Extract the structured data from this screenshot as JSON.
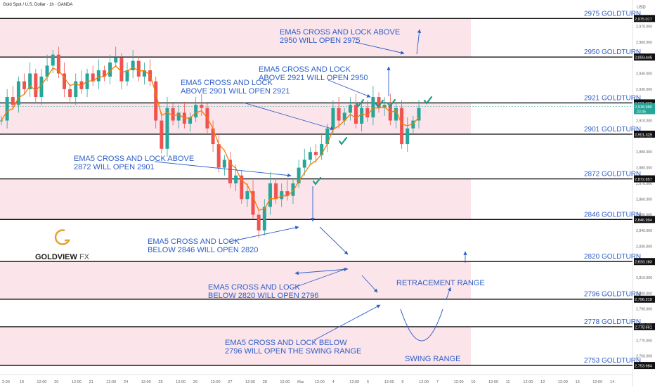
{
  "header": {
    "symbol_title": "Gold Spot / U.S. Dollar · 1h · OANDA",
    "currency": "USD"
  },
  "logo": {
    "brand": "GOLDVIEW",
    "suffix": "FX"
  },
  "colors": {
    "zone": "#fbe4ea",
    "level_line": "#111111",
    "annotation": "#2e5fc7",
    "candle_up": "#26a69a",
    "candle_down": "#ef5350",
    "ema": "#f57c00",
    "check": "#1aa084"
  },
  "chart_data": {
    "type": "candlestick",
    "ylim": [
      2750,
      2985
    ],
    "y_ticks": [
      2760,
      2770,
      2780,
      2790,
      2800,
      2810,
      2820,
      2830,
      2840,
      2850,
      2860,
      2870,
      2880,
      2890,
      2900,
      2910,
      2920,
      2930,
      2940,
      2950,
      2960,
      2970
    ],
    "x_ticks": [
      "2:00",
      "19",
      "12:00",
      "20",
      "12:00",
      "21",
      "12:00",
      "24",
      "12:00",
      "25",
      "12:00",
      "26",
      "12:00",
      "27",
      "12:00",
      "28",
      "12:00",
      "Mar",
      "12:00",
      "4",
      "12:00",
      "5",
      "12:00",
      "6",
      "12:00",
      "7",
      "12:00",
      "10",
      "12:00",
      "11",
      "12:00",
      "12",
      "12:00",
      "13",
      "12:00",
      "14"
    ],
    "levels": [
      {
        "value": 2975.017,
        "label": "2975 GOLDTURN",
        "price_tag": "2,975.017"
      },
      {
        "value": 2950.445,
        "label": "2950 GOLDTURN",
        "price_tag": "2,950.445"
      },
      {
        "value": 2921.26,
        "label": "2921 GOLDTURN",
        "price_tag": "2,921.260"
      },
      {
        "value": 2901.329,
        "label": "2901 GOLDTURN",
        "price_tag": "2,901.329"
      },
      {
        "value": 2872.857,
        "label": "2872 GOLDTURN",
        "price_tag": "2,872.857"
      },
      {
        "value": 2846.994,
        "label": "2846 GOLDTURN",
        "price_tag": "2,846.994"
      },
      {
        "value": 2820.183,
        "label": "2820 GOLDTURN",
        "price_tag": "2,820.183"
      },
      {
        "value": 2796.219,
        "label": "2796 GOLDTURN",
        "price_tag": "2,796.219"
      },
      {
        "value": 2778.661,
        "label": "2778 GOLDTURN",
        "price_tag": "2,778.661"
      },
      {
        "value": 2753.984,
        "label": "2753 GOLDTURN",
        "price_tag": "2,753.984"
      }
    ],
    "current_price": {
      "value": 2918.98,
      "tag": "2,918.980",
      "countdown": "23:45"
    },
    "zones": [
      [
        2950.445,
        2975.017
      ],
      [
        2901.329,
        2921.26
      ],
      [
        2846.994,
        2872.857
      ],
      [
        2796.219,
        2820.183
      ],
      [
        2753.984,
        2778.661
      ]
    ],
    "price_path": [
      2910,
      2925,
      2920,
      2935,
      2930,
      2940,
      2925,
      2938,
      2945,
      2952,
      2940,
      2930,
      2925,
      2935,
      2930,
      2940,
      2935,
      2942,
      2938,
      2947,
      2950,
      2935,
      2942,
      2948,
      2938,
      2942,
      2935,
      2910,
      2892,
      2918,
      2910,
      2915,
      2908,
      2912,
      2920,
      2918,
      2905,
      2895,
      2880,
      2885,
      2870,
      2875,
      2860,
      2865,
      2850,
      2840,
      2855,
      2870,
      2860,
      2865,
      2862,
      2870,
      2880,
      2885,
      2890,
      2888,
      2895,
      2905,
      2918,
      2910,
      2915,
      2920,
      2908,
      2918,
      2912,
      2925,
      2918,
      2920,
      2910,
      2918,
      2895,
      2905,
      2910,
      2918
    ]
  },
  "annotations": [
    {
      "text_lines": [
        "EMA5 CROSS AND LOCK ABOVE",
        "2950 WILL OPEN 2975"
      ]
    },
    {
      "text_lines": [
        "EMA5 CROSS AND LOCK",
        "ABOVE 2921 WILL OPEN 2950"
      ]
    },
    {
      "text_lines": [
        "EMA5 CROSS AND LOCK",
        "ABOVE 2901 WILL OPEN 2921"
      ]
    },
    {
      "text_lines": [
        "EMA5 CROSS AND LOCK ABOVE",
        "2872 WILL OPEN 2901"
      ]
    },
    {
      "text_lines": [
        "EMA5 CROSS AND LOCK",
        "BELOW 2846 WILL OPEN 2820"
      ]
    },
    {
      "text_lines": [
        "EMA5 CROSS AND LOCK",
        "BELOW 2820 WILL OPEN 2796"
      ]
    },
    {
      "text_lines": [
        "EMA5 CROSS AND LOCK BELOW",
        "2796 WILL OPEN THE SWING RANGE"
      ]
    },
    {
      "text_lines": [
        "RETRACEMENT RANGE"
      ]
    },
    {
      "text_lines": [
        "SWING RANGE"
      ]
    }
  ]
}
